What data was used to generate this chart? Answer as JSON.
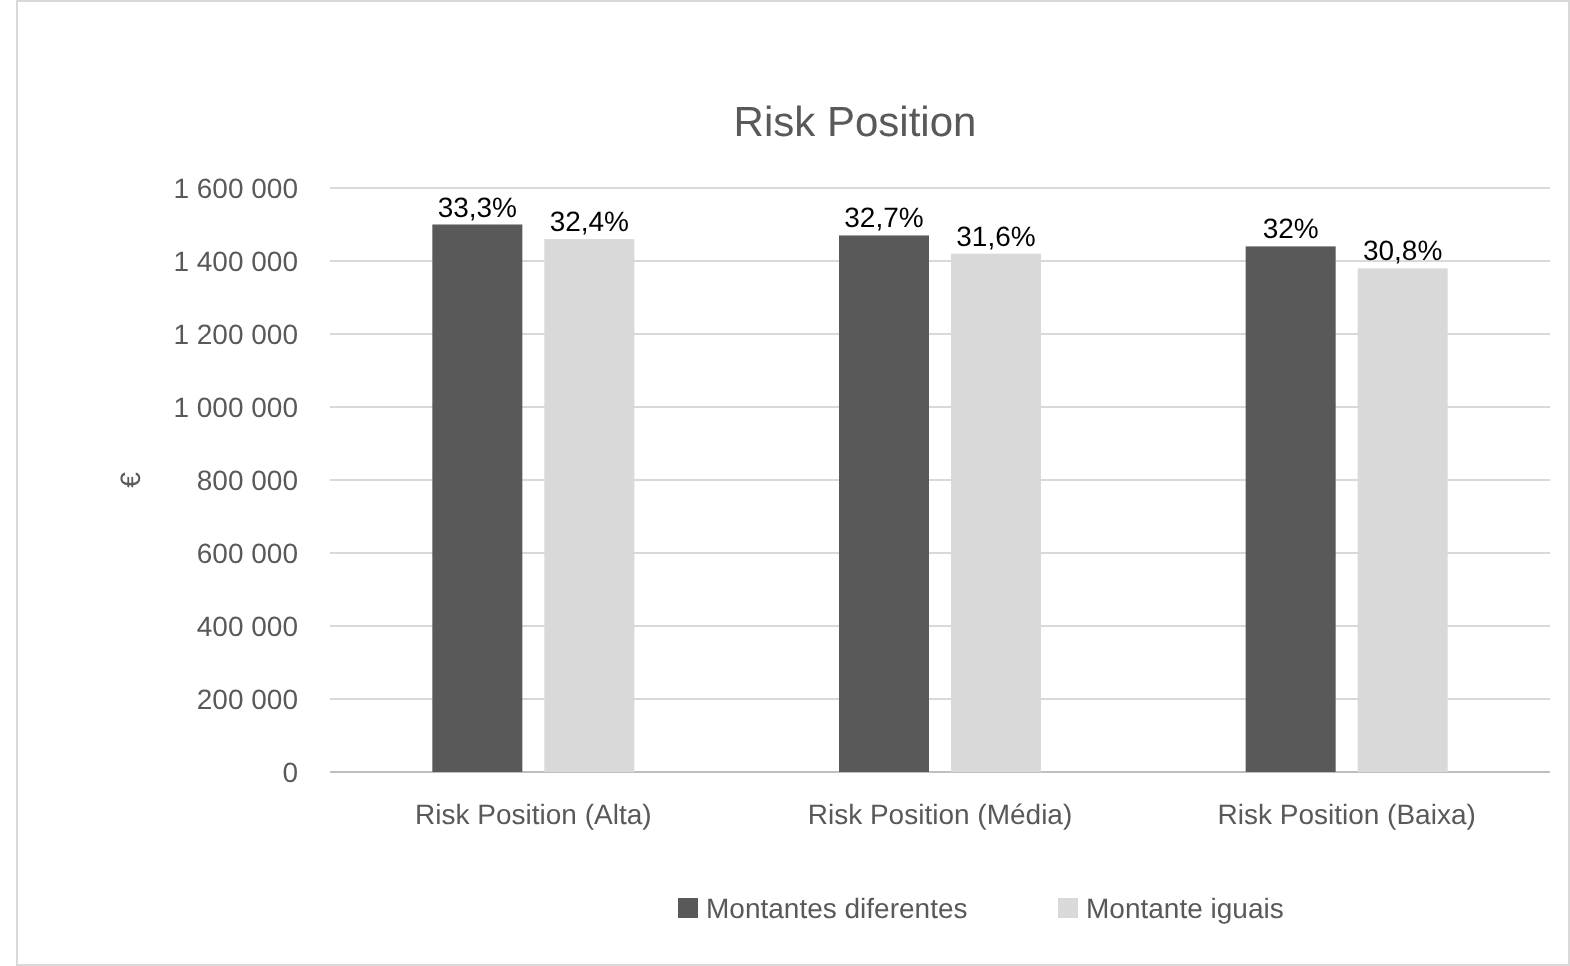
{
  "chart_data": {
    "type": "bar",
    "title": "Risk Position",
    "ylabel": "€",
    "categories": [
      "Risk Position (Alta)",
      "Risk Position (Média)",
      "Risk Position (Baixa)"
    ],
    "series": [
      {
        "name": "Montantes diferentes",
        "color": "#595959",
        "values": [
          1500000,
          1470000,
          1440000
        ]
      },
      {
        "name": "Montante iguais",
        "color": "#d9d9d9",
        "values": [
          1460000,
          1420000,
          1380000
        ]
      }
    ],
    "annotations": [
      "33,3%",
      "32,7%",
      "32%",
      "32,4%",
      "31,6%",
      "30,8%"
    ],
    "ylim": [
      0,
      1600000
    ],
    "yticks": [
      0,
      {
        "value": 200000,
        "label": "200 000"
      },
      {
        "value": 400000,
        "label": "400 000"
      },
      {
        "value": 600000,
        "label": "600 000"
      },
      {
        "value": 800000,
        "label": "800 000"
      },
      {
        "value": 1000000,
        "label": "1 000 000"
      },
      {
        "value": 1200000,
        "label": "1 200 000"
      },
      {
        "value": 1400000,
        "label": "1 400 000"
      },
      {
        "value": 1600000,
        "label": "1 600 000"
      }
    ],
    "grid": "y",
    "legend": "bottom"
  }
}
